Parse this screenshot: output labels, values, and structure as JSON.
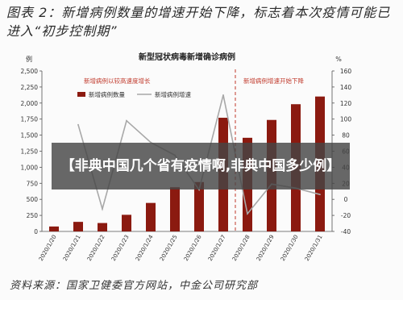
{
  "figure_title": "图表 2：新增病例数量的增速开始下降，标志着本次疫情可能已进入“初步控制期”",
  "source_note": "资料来源：国家卫健委官方网站，中金公司研究部",
  "overlay_caption": "【非典中国几个省有疫情啊,非典中国多少例】",
  "chart_data": {
    "type": "bar",
    "title": "新型冠状病毒新增确诊病例",
    "y_left_unit": "例",
    "y_right_unit": "%",
    "categories": [
      "2020/1/20",
      "2020/1/21",
      "2020/1/22",
      "2020/1/23",
      "2020/1/24",
      "2020/1/25",
      "2020/1/26",
      "2020/1/27",
      "2020/1/28",
      "2020/1/29",
      "2020/1/30",
      "2020/1/31"
    ],
    "y_left_ticks": [
      "0",
      "250",
      "500",
      "750",
      "1,000",
      "1,250",
      "1,500",
      "1,750",
      "2,000",
      "2,250",
      "2,500"
    ],
    "y_right_ticks": [
      "-40",
      "-20",
      "0",
      "20",
      "40",
      "60",
      "80",
      "100",
      "120",
      "140",
      "160"
    ],
    "ylim": [
      0,
      2500
    ],
    "y2lim": [
      -40,
      160
    ],
    "series": [
      {
        "name": "新增病例数量",
        "kind": "bar",
        "axis": "left",
        "color": "#8b1a10",
        "values": [
          77,
          149,
          131,
          259,
          444,
          688,
          769,
          1771,
          1459,
          1737,
          1982,
          2102
        ]
      },
      {
        "name": "新增病例增速",
        "kind": "line",
        "axis": "right",
        "color": "#a8a8a8",
        "values": [
          null,
          93,
          -12,
          98,
          71,
          55,
          12,
          130,
          -18,
          19,
          14,
          6
        ]
      }
    ],
    "annotations": [
      {
        "text": "新增病例以较高速度增长",
        "color": "#c0392b",
        "region": "left"
      },
      {
        "text": "新增病例增速开始下降",
        "color": "#c0392b",
        "region": "right"
      }
    ],
    "divider_between": [
      "2020/1/27",
      "2020/1/28"
    ],
    "grid": false,
    "legend": "top-left"
  }
}
